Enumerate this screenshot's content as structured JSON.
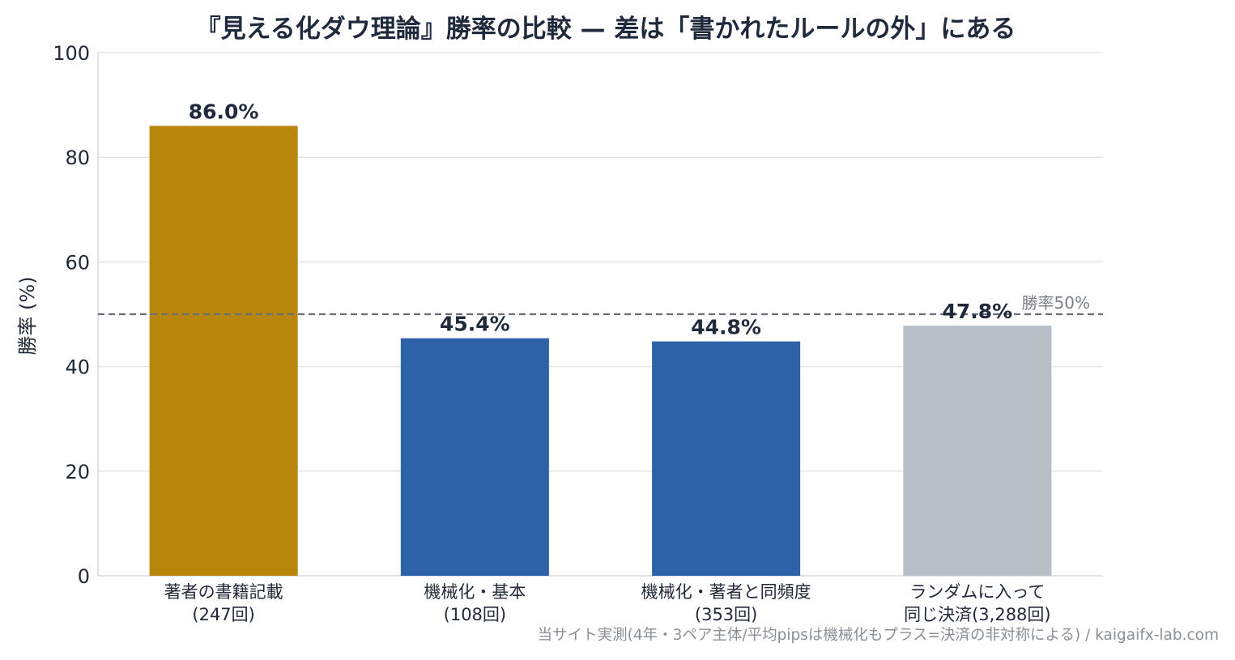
{
  "chart_data": {
    "type": "bar",
    "title": "『見える化ダウ理論』勝率の比較 — 差は「書かれたルールの外」にある",
    "xlabel": "",
    "ylabel": "勝率 (%)",
    "ylim": [
      0,
      100
    ],
    "yticks": [
      "0",
      "20",
      "40",
      "60",
      "80",
      "100"
    ],
    "grid": true,
    "categories": [
      [
        "著者の書籍記載",
        "(247回)"
      ],
      [
        "機械化・基本",
        "(108回)"
      ],
      [
        "機械化・著者と同頻度",
        "(353回)"
      ],
      [
        "ランダムに入って",
        "同じ決済(3,288回)"
      ]
    ],
    "values": [
      86.0,
      45.4,
      44.8,
      47.8
    ],
    "value_labels": [
      "86.0%",
      "45.4%",
      "44.8%",
      "47.8%"
    ],
    "colors": [
      "#b8860b",
      "#2e62a8",
      "#2e62a8",
      "#b8bec6"
    ],
    "reference_line": {
      "value": 50,
      "label": "勝率50%",
      "style": "dashed",
      "color": "#6b6f75"
    },
    "source_note": "当サイト実測(4年・3ペア主体/平均pipsは機械化もプラス=決済の非対称による) / kaigaifx-lab.com"
  }
}
